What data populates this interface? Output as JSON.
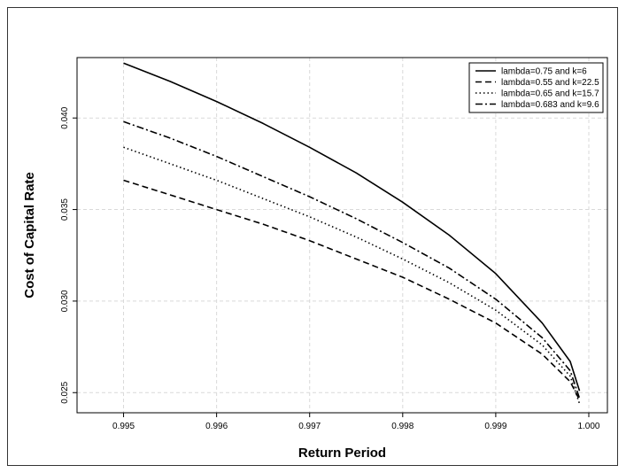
{
  "chart_data": {
    "type": "line",
    "xlabel": "Return Period",
    "ylabel": "Cost of Capital Rate",
    "xlim": [
      0.9945,
      1.0002
    ],
    "ylim": [
      0.0239,
      0.0433
    ],
    "x_ticks": [
      0.995,
      0.996,
      0.997,
      0.998,
      0.999,
      1.0
    ],
    "x_tick_labels": [
      "0.995",
      "0.996",
      "0.997",
      "0.998",
      "0.999",
      "1.000"
    ],
    "y_ticks": [
      0.025,
      0.03,
      0.035,
      0.04
    ],
    "y_tick_labels": [
      "0.025",
      "0.030",
      "0.035",
      "0.040"
    ],
    "grid": true,
    "legend_position": "top-right",
    "series": [
      {
        "name": "lambda=0.75 and k=6",
        "dash": "solid",
        "x": [
          0.995,
          0.9955,
          0.996,
          0.9965,
          0.997,
          0.9975,
          0.998,
          0.9985,
          0.999,
          0.9995,
          0.9998,
          0.9999
        ],
        "y": [
          0.043,
          0.042,
          0.0409,
          0.0397,
          0.0384,
          0.037,
          0.0354,
          0.0336,
          0.0315,
          0.0288,
          0.0267,
          0.0251
        ]
      },
      {
        "name": "lambda=0.55 and k=22.5",
        "dash": "dashed",
        "x": [
          0.995,
          0.9955,
          0.996,
          0.9965,
          0.997,
          0.9975,
          0.998,
          0.9985,
          0.999,
          0.9995,
          0.9998,
          0.9999
        ],
        "y": [
          0.0366,
          0.0358,
          0.035,
          0.0342,
          0.0333,
          0.0323,
          0.0313,
          0.0301,
          0.0288,
          0.0271,
          0.0256,
          0.0246
        ]
      },
      {
        "name": "lambda=0.65 and k=15.7",
        "dash": "dotted",
        "x": [
          0.995,
          0.9955,
          0.996,
          0.9965,
          0.997,
          0.9975,
          0.998,
          0.9985,
          0.999,
          0.9995,
          0.9998,
          0.9999
        ],
        "y": [
          0.0384,
          0.0375,
          0.0366,
          0.0356,
          0.0346,
          0.0335,
          0.0323,
          0.031,
          0.0295,
          0.0276,
          0.0259,
          0.0244
        ]
      },
      {
        "name": "lambda=0.683 and k=9.6",
        "dash": "dashdot",
        "x": [
          0.995,
          0.9955,
          0.996,
          0.9965,
          0.997,
          0.9975,
          0.998,
          0.9985,
          0.999,
          0.9995,
          0.9998,
          0.9999
        ],
        "y": [
          0.0398,
          0.0389,
          0.0379,
          0.0368,
          0.0357,
          0.0345,
          0.0332,
          0.0318,
          0.0301,
          0.028,
          0.0262,
          0.0247
        ]
      }
    ]
  }
}
